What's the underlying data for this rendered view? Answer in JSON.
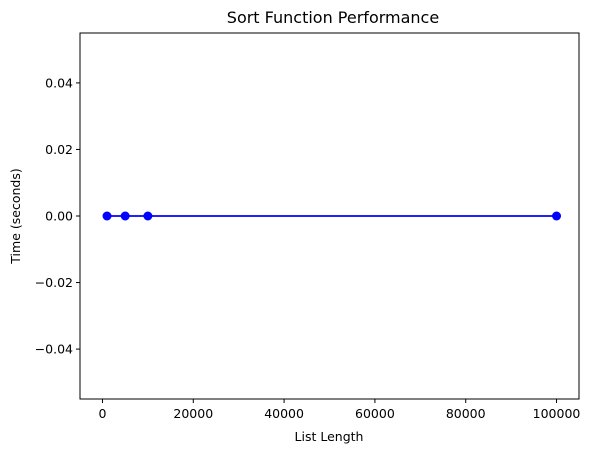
{
  "chart_data": {
    "type": "line",
    "title": "Sort Function Performance",
    "xlabel": "List Length",
    "ylabel": "Time (seconds)",
    "xlim": [
      -4950,
      104950
    ],
    "ylim": [
      -0.055,
      0.055
    ],
    "xticks": [
      0,
      20000,
      40000,
      60000,
      80000,
      100000
    ],
    "xtick_labels": [
      "0",
      "20000",
      "40000",
      "60000",
      "80000",
      "100000"
    ],
    "yticks": [
      -0.04,
      -0.02,
      0.0,
      0.02,
      0.04
    ],
    "ytick_labels": [
      "−0.04",
      "−0.02",
      "0.00",
      "0.02",
      "0.04"
    ],
    "grid": false,
    "series": [
      {
        "color": "#0000ff",
        "marker": "circle",
        "x": [
          1000,
          5000,
          10000,
          100000
        ],
        "y": [
          0.0,
          0.0,
          0.0,
          0.0
        ]
      }
    ]
  }
}
